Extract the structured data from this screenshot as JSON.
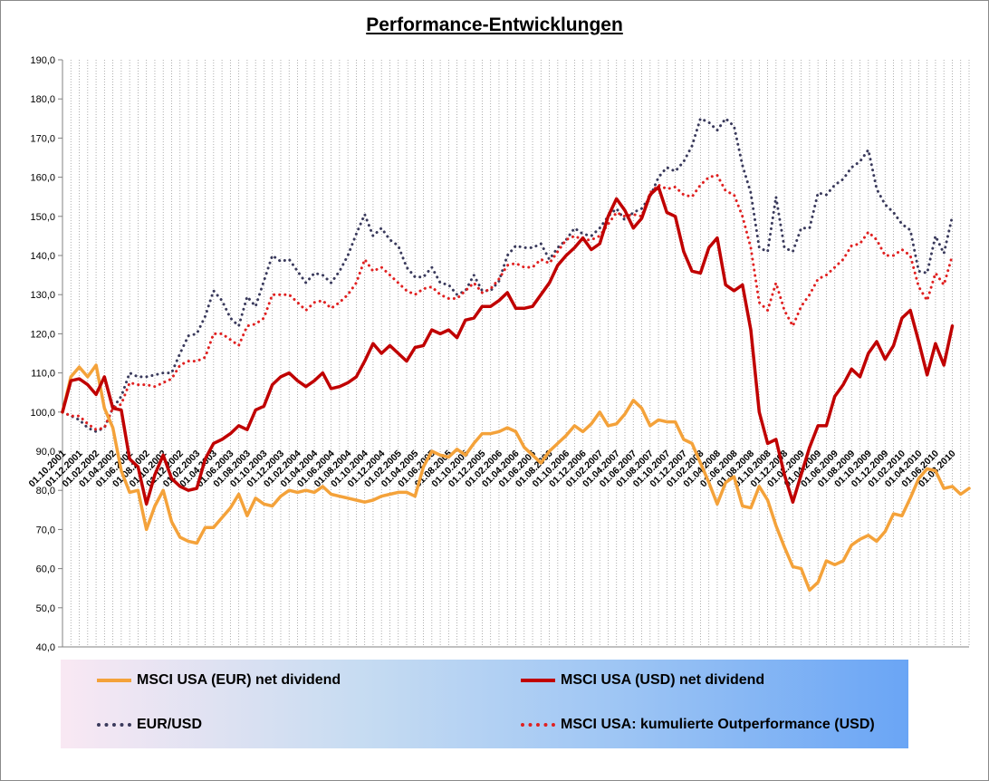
{
  "chart_data": {
    "type": "line",
    "title": "Performance-Entwicklungen",
    "ylim": [
      40,
      190
    ],
    "yticks": [
      "190,0",
      "180,0",
      "170,0",
      "160,0",
      "150,0",
      "140,0",
      "130,0",
      "120,0",
      "110,0",
      "100,0",
      "90,0",
      "80,0",
      "70,0",
      "60,0",
      "50,0",
      "40,0"
    ],
    "ytick_values": [
      190,
      180,
      170,
      160,
      150,
      140,
      130,
      120,
      110,
      100,
      90,
      80,
      70,
      60,
      50,
      40
    ],
    "xtick_labels": [
      "01.10.2001",
      "01.12.2001",
      "01.02.2002",
      "01.04.2002",
      "01.06.2002",
      "01.08.2002",
      "01.10.2002",
      "01.12.2002",
      "01.02.2003",
      "01.04.2003",
      "01.06.2003",
      "01.08.2003",
      "01.10.2003",
      "01.12.2003",
      "01.02.2004",
      "01.04.2004",
      "01.06.2004",
      "01.08.2004",
      "01.10.2004",
      "01.12.2004",
      "01.02.2005",
      "01.04.2005",
      "01.06.2005",
      "01.08.2005",
      "01.10.2005",
      "01.12.2005",
      "01.02.2006",
      "01.04.2006",
      "01.06.2006",
      "01.08.2006",
      "01.10.2006",
      "01.12.2006",
      "01.02.2007",
      "01.04.2007",
      "01.06.2007",
      "01.08.2007",
      "01.10.2007",
      "01.12.2007",
      "01.02.2008",
      "01.04.2008",
      "01.06.2008",
      "01.08.2008",
      "01.10.2008",
      "01.12.2008",
      "01.02.2009",
      "01.04.2009",
      "01.06.2009",
      "01.08.2009",
      "01.10.2009",
      "01.12.2009",
      "01.02.2010",
      "01.04.2010",
      "01.06.2010",
      "01.08.2010"
    ],
    "grid": "vertical dotted",
    "legend_position": "bottom",
    "series": [
      {
        "name": "MSCI USA (EUR) net dividend",
        "color": "#f4a23a",
        "style": "solid",
        "values": [
          100,
          109,
          111.5,
          109,
          112,
          101,
          96,
          85,
          79.5,
          80,
          70,
          76,
          80,
          72,
          68,
          67,
          66.5,
          70.5,
          70.5,
          73,
          75.5,
          79,
          73.5,
          78,
          76.5,
          76,
          78.5,
          80,
          79.5,
          80,
          79.5,
          81,
          79,
          78.5,
          78,
          77.5,
          77,
          77.5,
          78.5,
          79,
          79.5,
          79.5,
          78.5,
          86,
          90,
          89,
          88.5,
          90.5,
          89,
          92,
          94.5,
          94.5,
          95,
          96,
          95,
          91,
          89,
          87,
          90,
          92,
          94,
          96.5,
          95,
          97,
          100,
          96.5,
          97,
          99.5,
          103,
          101,
          96.5,
          98,
          97.5,
          97.5,
          93,
          92,
          87,
          82,
          76.5,
          82,
          83.5,
          76,
          75.5,
          81,
          77.5,
          71,
          65.5,
          60.5,
          60,
          54.5,
          56.5,
          62,
          61,
          62,
          66,
          67.5,
          68.5,
          67,
          69.5,
          74,
          73.5,
          78,
          83,
          85.5,
          85,
          80.5,
          81,
          79,
          80.5
        ]
      },
      {
        "name": "MSCI USA (USD) net dividend",
        "color": "#c00000",
        "style": "solid",
        "values": [
          100,
          108,
          108.5,
          107,
          104.5,
          109,
          101,
          100.5,
          88,
          86,
          76.5,
          84,
          89,
          83,
          81,
          80,
          80.5,
          88,
          92,
          93,
          94.5,
          96.5,
          95.5,
          100.5,
          101.5,
          107,
          109,
          110,
          108,
          106.5,
          108,
          110,
          106,
          106.5,
          107.5,
          109,
          113,
          117.5,
          115,
          117,
          115,
          113,
          116.5,
          117,
          121,
          120,
          121,
          119,
          123.5,
          124,
          127,
          127,
          128.5,
          130.5,
          126.5,
          126.5,
          127,
          130,
          133,
          137.5,
          140,
          142,
          144.5,
          141.5,
          143,
          150,
          154.5,
          151.5,
          147,
          149.5,
          155.5,
          157.5,
          151,
          150,
          141,
          136,
          135.5,
          142,
          144.5,
          132.5,
          131,
          132.5,
          121,
          100,
          92,
          93,
          84,
          77,
          84,
          91,
          96.5,
          96.5,
          104,
          107,
          111,
          109,
          115,
          118,
          113.5,
          117,
          124,
          126,
          118,
          109.5,
          117.5,
          112,
          122
        ]
      },
      {
        "name": "EUR/USD",
        "color": "#3a3a5c",
        "style": "dotted",
        "values": [
          100,
          99,
          98,
          96,
          95,
          96,
          101,
          104,
          110,
          109,
          109,
          109.5,
          110,
          110,
          115,
          119.5,
          120,
          124.5,
          131,
          128.5,
          124,
          122,
          129.5,
          127,
          133.5,
          140,
          138.5,
          139,
          136,
          133,
          135.5,
          135,
          133,
          136,
          140,
          145.5,
          150.5,
          145,
          147,
          144,
          142.5,
          137,
          134.5,
          134.5,
          137,
          133,
          132.5,
          130,
          131,
          135,
          131,
          131,
          133.5,
          140,
          142.5,
          142,
          142,
          143,
          139,
          142,
          144,
          147,
          145.5,
          145,
          147,
          150,
          152,
          149,
          151,
          152,
          155,
          160,
          162.5,
          161.5,
          164,
          168,
          175,
          174,
          172,
          175,
          173,
          163,
          156,
          142,
          141,
          155,
          142,
          141,
          147,
          147,
          156,
          155.5,
          158,
          159.5,
          162.5,
          164,
          167,
          157,
          153,
          151,
          148,
          146.5,
          136,
          135.5,
          145,
          140.5,
          150
        ]
      },
      {
        "name": "MSCI USA: kumulierte Outperformance (USD)",
        "color": "#e02020",
        "style": "dotted",
        "values": [
          100,
          99,
          99,
          97,
          95.5,
          96,
          101,
          102,
          107.5,
          107,
          107,
          106.5,
          107.5,
          108.5,
          112,
          113,
          113,
          114,
          120,
          120,
          118.5,
          117,
          122,
          122.5,
          124,
          130,
          130,
          130,
          128,
          126,
          128,
          128.5,
          126.5,
          128,
          130,
          133,
          139,
          136,
          137,
          135,
          133,
          131,
          130,
          131.5,
          132,
          130,
          129,
          129,
          131,
          133,
          130.5,
          131.5,
          134,
          137.5,
          138,
          137,
          137,
          139,
          138,
          141,
          144,
          145,
          144,
          144,
          145,
          148,
          151,
          150,
          150.5,
          150,
          156,
          158,
          157,
          157.5,
          155.5,
          155,
          158,
          160,
          160.5,
          156.5,
          155.5,
          150,
          142,
          128,
          126,
          133,
          126,
          122,
          127,
          130,
          134,
          135,
          137,
          139,
          142.5,
          143,
          146,
          144,
          140,
          140,
          141.5,
          140,
          132,
          128.5,
          135.5,
          132.5,
          140
        ]
      }
    ]
  }
}
